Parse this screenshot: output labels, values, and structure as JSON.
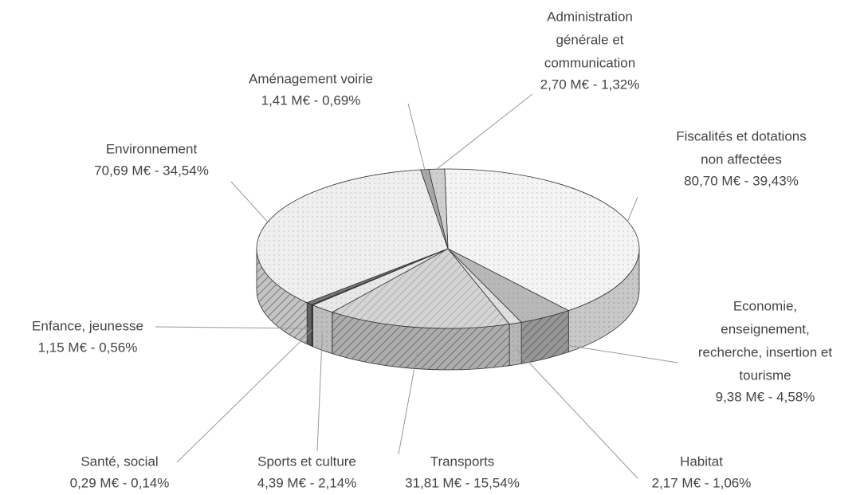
{
  "chart_data": {
    "type": "pie3d",
    "categories": [
      [
        "Fiscalités et dotations",
        "non affectées"
      ],
      [
        "Economie,",
        "enseignement,",
        "recherche, insertion et",
        "tourisme"
      ],
      [
        "Habitat"
      ],
      [
        "Transports"
      ],
      [
        "Sports et culture"
      ],
      [
        "Santé, social"
      ],
      [
        "Enfance, jeunesse"
      ],
      [
        "Environnement"
      ],
      [
        "Aménagement voirie"
      ],
      [
        "Administration",
        "générale et",
        "communication"
      ]
    ],
    "values": [
      80.7,
      9.38,
      2.17,
      31.81,
      4.39,
      0.29,
      1.15,
      70.69,
      1.41,
      2.7
    ],
    "value_labels": [
      "80,70 M€ - 39,43%",
      "9,38 M€ - 4,58%",
      "2,17 M€ - 1,06%",
      "31,81 M€ - 15,54%",
      "4,39 M€ - 2,14%",
      "0,29 M€ - 0,14%",
      "1,15 M€ - 0,56%",
      "70,69 M€ - 34,54%",
      "1,41 M€ - 0,69%",
      "2,70 M€ - 1,32%"
    ],
    "colors": [
      "#f4f4f4",
      "#b8b8b8",
      "#e0e0e0",
      "#d4d4d4",
      "#e8e8e8",
      "#555555",
      "#777777",
      "#efefef",
      "#a8a8a8",
      "#cfcfcf"
    ]
  }
}
